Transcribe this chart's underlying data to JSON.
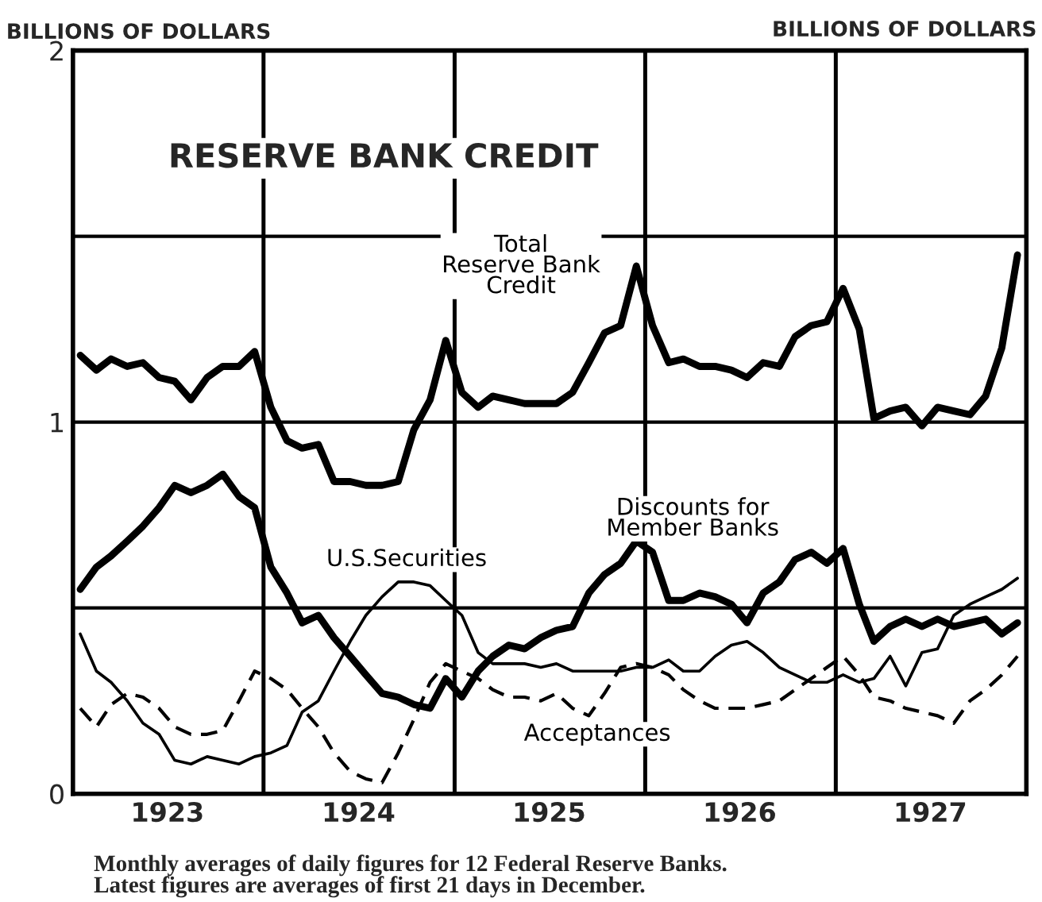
{
  "chart_data": {
    "type": "line",
    "title": "RESERVE BANK CREDIT",
    "ylabel": "BILLIONS OF DOLLARS",
    "annotations": [
      "BILLIONS OF DOLLARS",
      "Monthly averages of daily figures for 12 Federal Reserve Banks.\nLatest figures are averages of first 21 days in December."
    ],
    "x": [
      "1923-01-15",
      "1923-02-15",
      "1923-03-15",
      "1923-04-15",
      "1923-05-15",
      "1923-06-15",
      "1923-07-15",
      "1923-08-15",
      "1923-09-15",
      "1923-10-15",
      "1923-11-15",
      "1923-12-15",
      "1924-01-15",
      "1924-02-15",
      "1924-03-15",
      "1924-04-15",
      "1924-05-15",
      "1924-06-15",
      "1924-07-15",
      "1924-08-15",
      "1924-09-15",
      "1924-10-15",
      "1924-11-15",
      "1924-12-15",
      "1925-01-15",
      "1925-02-15",
      "1925-03-15",
      "1925-04-15",
      "1925-05-15",
      "1925-06-15",
      "1925-07-15",
      "1925-08-15",
      "1925-09-15",
      "1925-10-15",
      "1925-11-15",
      "1925-12-15",
      "1926-01-15",
      "1926-02-15",
      "1926-03-15",
      "1926-04-15",
      "1926-05-15",
      "1926-06-15",
      "1926-07-15",
      "1926-08-15",
      "1926-09-15",
      "1926-10-15",
      "1926-11-15",
      "1926-12-15",
      "1927-01-15",
      "1927-02-15",
      "1927-03-15",
      "1927-04-15",
      "1927-05-15",
      "1927-06-15",
      "1927-07-15",
      "1927-08-15",
      "1927-09-15",
      "1927-10-15",
      "1927-11-15",
      "1927-12-15"
    ],
    "series": [
      {
        "name": "Total\nReserve Bank\nCredit",
        "color": "#000000",
        "line_style": "solid",
        "values": [
          1.18,
          1.14,
          1.17,
          1.15,
          1.16,
          1.12,
          1.11,
          1.06,
          1.12,
          1.15,
          1.15,
          1.19,
          1.04,
          0.95,
          0.93,
          0.94,
          0.84,
          0.84,
          0.83,
          0.83,
          0.84,
          0.98,
          1.06,
          1.22,
          1.08,
          1.04,
          1.07,
          1.06,
          1.05,
          1.05,
          1.05,
          1.08,
          1.16,
          1.24,
          1.26,
          1.42,
          1.26,
          1.16,
          1.17,
          1.15,
          1.15,
          1.14,
          1.12,
          1.16,
          1.15,
          1.23,
          1.26,
          1.27,
          1.36,
          1.25,
          1.01,
          1.03,
          1.04,
          0.99,
          1.04,
          1.03,
          1.02,
          1.07,
          1.2,
          1.45
        ]
      },
      {
        "name": "Discounts for\nMember Banks",
        "color": "#000000",
        "line_style": "solid",
        "values": [
          0.55,
          0.61,
          0.64,
          0.68,
          0.72,
          0.77,
          0.83,
          0.81,
          0.83,
          0.86,
          0.8,
          0.77,
          0.61,
          0.54,
          0.46,
          0.48,
          0.42,
          0.37,
          0.32,
          0.27,
          0.26,
          0.24,
          0.23,
          0.31,
          0.26,
          0.33,
          0.37,
          0.4,
          0.39,
          0.42,
          0.44,
          0.45,
          0.54,
          0.59,
          0.62,
          0.68,
          0.65,
          0.52,
          0.52,
          0.54,
          0.53,
          0.51,
          0.46,
          0.54,
          0.57,
          0.63,
          0.65,
          0.62,
          0.66,
          0.51,
          0.41,
          0.45,
          0.47,
          0.45,
          0.47,
          0.45,
          0.46,
          0.47,
          0.43,
          0.46
        ]
      },
      {
        "name": "U.S.Securities",
        "color": "#000000",
        "line_style": "solid",
        "values": [
          0.43,
          0.33,
          0.3,
          0.25,
          0.19,
          0.16,
          0.09,
          0.08,
          0.1,
          0.09,
          0.08,
          0.1,
          0.11,
          0.13,
          0.22,
          0.25,
          0.33,
          0.41,
          0.48,
          0.53,
          0.57,
          0.57,
          0.56,
          0.52,
          0.48,
          0.38,
          0.35,
          0.35,
          0.35,
          0.34,
          0.35,
          0.33,
          0.33,
          0.33,
          0.33,
          0.34,
          0.34,
          0.36,
          0.33,
          0.33,
          0.37,
          0.4,
          0.41,
          0.38,
          0.34,
          0.32,
          0.3,
          0.3,
          0.32,
          0.3,
          0.31,
          0.37,
          0.29,
          0.38,
          0.39,
          0.48,
          0.51,
          0.53,
          0.55,
          0.58
        ]
      },
      {
        "name": "Acceptances",
        "color": "#000000",
        "line_style": "dashed",
        "values": [
          0.23,
          0.18,
          0.24,
          0.27,
          0.26,
          0.23,
          0.18,
          0.16,
          0.16,
          0.17,
          0.25,
          0.33,
          0.31,
          0.28,
          0.23,
          0.18,
          0.11,
          0.06,
          0.04,
          0.03,
          0.11,
          0.2,
          0.3,
          0.35,
          0.33,
          0.31,
          0.28,
          0.26,
          0.26,
          0.25,
          0.27,
          0.23,
          0.21,
          0.27,
          0.34,
          0.35,
          0.34,
          0.32,
          0.28,
          0.25,
          0.23,
          0.23,
          0.23,
          0.24,
          0.25,
          0.28,
          0.31,
          0.34,
          0.37,
          0.32,
          0.26,
          0.25,
          0.23,
          0.22,
          0.21,
          0.19,
          0.25,
          0.28,
          0.32,
          0.37
        ]
      }
    ],
    "xlim": [
      "1923-01-01",
      "1928-01-01"
    ],
    "xticks": [
      {
        "value": "1923-07-01",
        "label": "1923"
      },
      {
        "value": "1924-07-01",
        "label": "1924"
      },
      {
        "value": "1925-07-01",
        "label": "1925"
      },
      {
        "value": "1926-07-01",
        "label": "1926"
      },
      {
        "value": "1927-07-01",
        "label": "1927"
      }
    ],
    "ylim": [
      0,
      2
    ],
    "yticks": [
      0,
      {
        "value": 0.5,
        "label": null
      },
      1,
      {
        "value": 1.5,
        "label": null
      },
      2
    ],
    "ref_lines": [
      {
        "axis": "x",
        "value": "1924-01-01",
        "color": "#000000"
      },
      {
        "axis": "x",
        "value": "1925-01-01",
        "color": "#000000"
      },
      {
        "axis": "x",
        "value": "1926-01-01",
        "color": "#000000"
      },
      {
        "axis": "x",
        "value": "1927-01-01",
        "color": "#000000"
      }
    ],
    "grid": "y"
  }
}
